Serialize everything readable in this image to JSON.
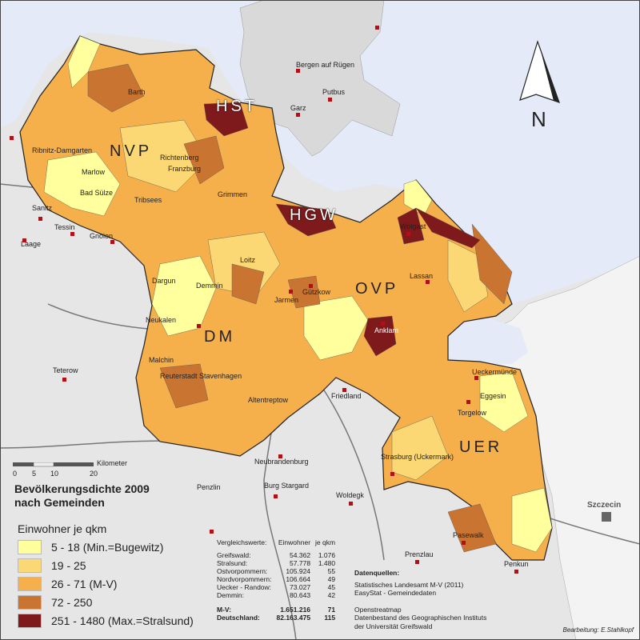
{
  "legend": {
    "title_line1": "Bevölkerungsdichte 2009",
    "title_line2": "nach Gemeinden",
    "unit": "Einwohner je qkm",
    "classes": [
      {
        "label": "5 - 18 (Min.=Bugewitz)",
        "color": "#ffff9e"
      },
      {
        "label": "19 - 25",
        "color": "#fcd874"
      },
      {
        "label": "26 - 71 (M-V)",
        "color": "#f5b04c"
      },
      {
        "label": "72 - 250",
        "color": "#c97531"
      },
      {
        "label": "251 - 1480 (Max.=Stralsund)",
        "color": "#7e1a1c"
      }
    ]
  },
  "scale_bar": {
    "unit": "Kilometer",
    "ticks": [
      "0",
      "5",
      "10",
      "20"
    ]
  },
  "north_arrow": {
    "label": "N",
    "icon": "north-arrow-icon"
  },
  "districts": [
    "NVP",
    "HST",
    "HGW",
    "OVP",
    "DM",
    "UER"
  ],
  "towns_outside": [
    "Bergen auf Rügen",
    "Putbus",
    "Garz",
    "Sanitz",
    "Tessin",
    "Gnoien",
    "Laage",
    "Teterow",
    "Friedland",
    "Neubrandenburg",
    "Penzlin",
    "Burg Stargard",
    "Woldegk",
    "Prenzlau",
    "Szczecin"
  ],
  "towns_inside": [
    "Barth",
    "Ribnitz-Damgarten",
    "Marlow",
    "Bad Sülze",
    "Tribsees",
    "Richtenberg",
    "Franzburg",
    "Grimmen",
    "Loitz",
    "Dargun",
    "Demmin",
    "Jarmen",
    "Gützkow",
    "Neukalen",
    "Malchin",
    "Reuterstadt Stavenhagen",
    "Altentreptow",
    "Anklam",
    "Lassan",
    "Wolgast",
    "Ueckermünde",
    "Eggesin",
    "Torgelow",
    "Pasewalk",
    "Strasburg (Uckermark)",
    "Penkun"
  ],
  "comparison": {
    "header": [
      "Vergleichswerte:",
      "Einwohner",
      "je qkm"
    ],
    "rows": [
      [
        "Greifswald:",
        "54.362",
        "1.076"
      ],
      [
        "Stralsund:",
        "57.778",
        "1.480"
      ],
      [
        "Ostvorpommern:",
        "105.924",
        "55"
      ],
      [
        "Nordvorpommern:",
        "106.664",
        "49"
      ],
      [
        "Uecker - Randow:",
        "73.027",
        "45"
      ],
      [
        "Demmin:",
        "80.643",
        "42"
      ]
    ],
    "totals": [
      [
        "M-V:",
        "1.651.216",
        "71"
      ],
      [
        "Deutschland:",
        "82.163.475",
        "115"
      ]
    ]
  },
  "sources": {
    "heading": "Datenquellen:",
    "line1": "Statistisches Landesamt M-V (2011)",
    "line2": "EasyStat - Gemeindedaten",
    "line3": "Openstreatmap",
    "line4": "Datenbestand des Geographischen Instituts",
    "line5": "der Universität Greifswald"
  },
  "credit": "Bearbeitung: E.Stahlkopf",
  "colors": {
    "sea": "#e4eaf7",
    "land": "#e6e6e6",
    "rugen": "#d9d9d9",
    "town_marker": "#b01018"
  }
}
